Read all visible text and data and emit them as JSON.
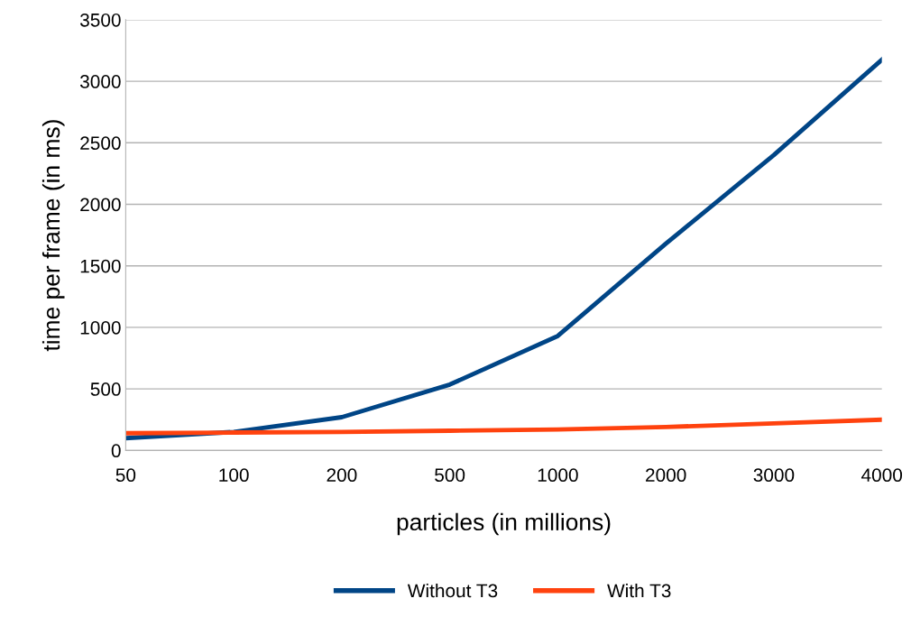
{
  "chart_data": {
    "type": "line",
    "xlabel": "particles (in millions)",
    "ylabel": "time per frame (in ms)",
    "categories": [
      "50",
      "100",
      "200",
      "500",
      "1000",
      "2000",
      "3000",
      "4000"
    ],
    "series": [
      {
        "name": "Without T3",
        "color": "#004586",
        "values": [
          100,
          150,
          270,
          535,
          930,
          1680,
          2400,
          3175
        ]
      },
      {
        "name": "With T3",
        "color": "#ff420e",
        "values": [
          140,
          145,
          150,
          160,
          170,
          190,
          220,
          250
        ]
      }
    ],
    "ylim": [
      0,
      3500
    ],
    "yticks": [
      0,
      500,
      1000,
      1500,
      2000,
      2500,
      3000,
      3500
    ],
    "grid": "y",
    "legend": "bottom",
    "marker": "none",
    "line_style": "solid"
  }
}
